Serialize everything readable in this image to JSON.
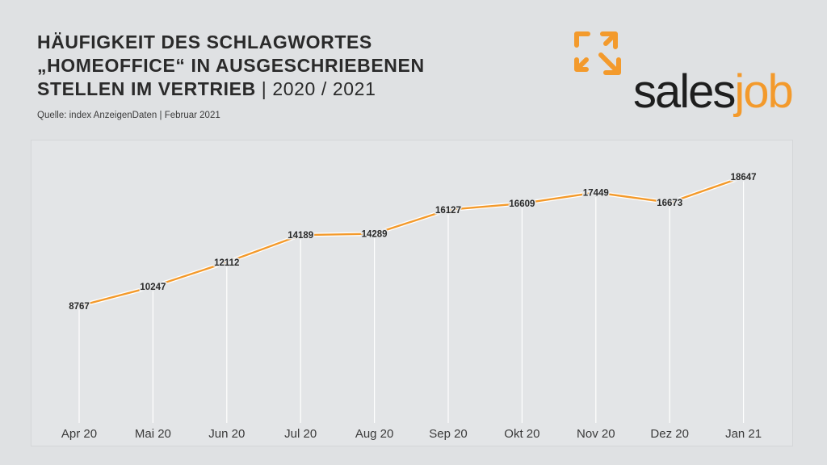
{
  "header": {
    "title_lines": [
      "HÄUFIGKEIT DES SCHLAGWORTES",
      "„HOMEOFFICE“ IN AUSGESCHRIEBENEN",
      "STELLEN IM VERTRIEB"
    ],
    "title_suffix": " | 2020 / 2021",
    "source": "Quelle: index AnzeigenDaten | Februar 2021"
  },
  "logo": {
    "word_dark": "sales",
    "word_accent": "job",
    "accent_color": "#f39a2c"
  },
  "colors": {
    "line": "#f39a2c",
    "line_outline": "#ffffff",
    "drop_line": "#ffffff",
    "label": "#2a2a2a",
    "axis_label": "#3a3a3a"
  },
  "chart_data": {
    "type": "line",
    "categories": [
      "Apr 20",
      "Mai 20",
      "Jun 20",
      "Jul 20",
      "Aug 20",
      "Sep 20",
      "Okt 20",
      "Nov 20",
      "Dez 20",
      "Jan 21"
    ],
    "values": [
      8767,
      10247,
      12112,
      14189,
      14289,
      16127,
      16609,
      17449,
      16673,
      18647
    ],
    "labels": [
      "8767",
      "10247",
      "12112",
      "14189",
      "14289",
      "16127",
      "16609",
      "17449",
      "16673",
      "18647"
    ],
    "title": "",
    "xlabel": "",
    "ylabel": "",
    "grid": false,
    "legend": "none"
  }
}
